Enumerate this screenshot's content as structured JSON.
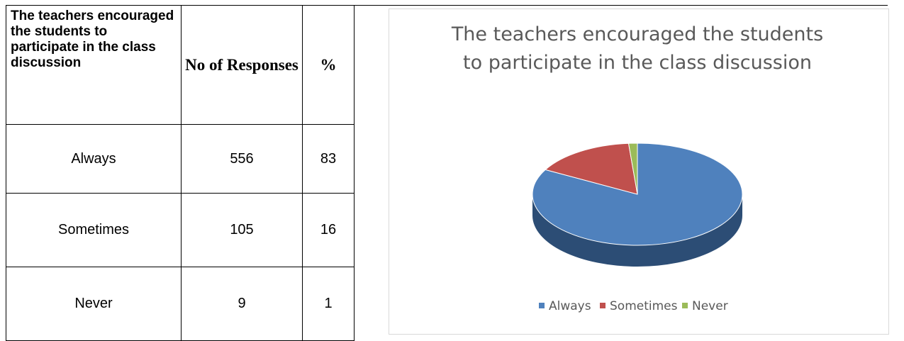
{
  "table": {
    "header": [
      "The teachers encouraged the students to participate in the class discussion",
      "No of Responses",
      "%"
    ],
    "rows": [
      [
        "Always",
        "556",
        "83"
      ],
      [
        "Sometimes",
        "105",
        "16"
      ],
      [
        "Never",
        "9",
        "1"
      ]
    ]
  },
  "chart_data": {
    "type": "pie",
    "title": "The teachers encouraged the students to participate in the class discussion",
    "categories": [
      "Always",
      "Sometimes",
      "Never"
    ],
    "values": [
      556,
      105,
      9
    ],
    "colors": [
      "#4f81bd",
      "#c0504d",
      "#9bbb59"
    ],
    "legend": "bottom"
  }
}
